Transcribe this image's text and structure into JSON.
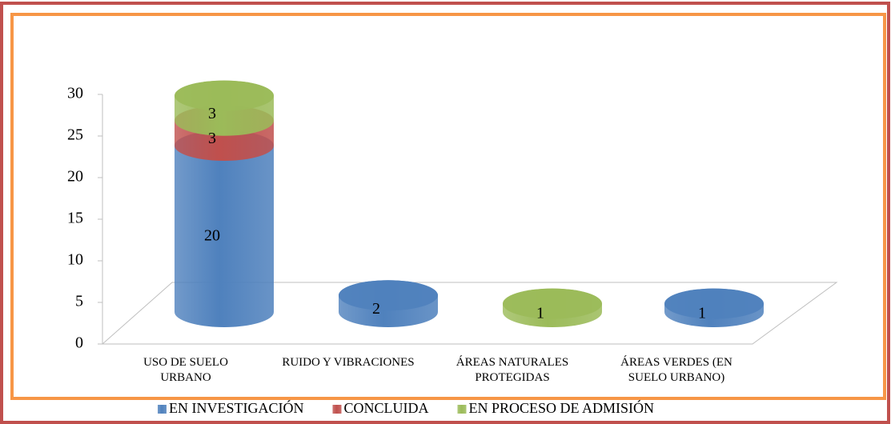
{
  "chart_data": {
    "type": "bar",
    "categories": [
      "USO DE SUELO URBANO",
      "RUIDO Y VIBRACIONES",
      "ÁREAS NATURALES PROTEGIDAS",
      "ÁREAS VERDES (EN SUELO URBANO)"
    ],
    "series": [
      {
        "name": "EN INVESTIGACIÓN",
        "color": "#4f81bd",
        "values": [
          20,
          2,
          null,
          1
        ]
      },
      {
        "name": "CONCLUIDA",
        "color": "#c0504d",
        "values": [
          3,
          null,
          null,
          null
        ]
      },
      {
        "name": "EN PROCESO DE ADMISIÓN",
        "color": "#9bbb59",
        "values": [
          3,
          null,
          1,
          null
        ]
      }
    ],
    "stacked": true,
    "ylim": [
      0,
      30
    ],
    "yticks": [
      0,
      5,
      10,
      15,
      20,
      25,
      30
    ],
    "legend": "bottom"
  }
}
